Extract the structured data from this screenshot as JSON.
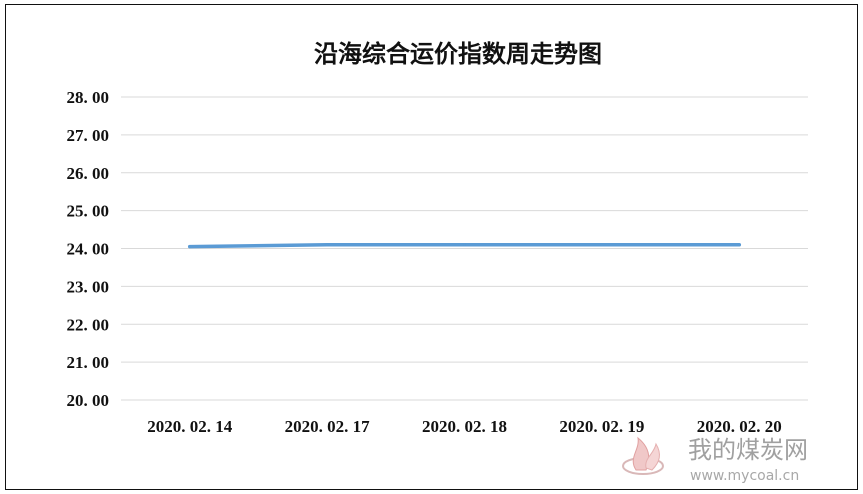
{
  "chart_data": {
    "type": "line",
    "title": "沿海综合运价指数周走势图",
    "categories": [
      "2020.02.14",
      "2020.02.17",
      "2020.02.18",
      "2020.02.19",
      "2020.02.20"
    ],
    "x_tick_labels": [
      "2020. 02. 14",
      "2020. 02. 17",
      "2020. 02. 18",
      "2020. 02. 19",
      "2020. 02. 20"
    ],
    "series": [
      {
        "values": [
          24.05,
          24.1,
          24.1,
          24.1,
          24.1
        ],
        "color": "#5b9bd5"
      }
    ],
    "ylim": [
      20,
      28
    ],
    "y_ticks": [
      20,
      21,
      22,
      23,
      24,
      25,
      26,
      27,
      28
    ],
    "y_tick_labels": [
      "20. 00",
      "21. 00",
      "22. 00",
      "23. 00",
      "24. 00",
      "25. 00",
      "26. 00",
      "27. 00",
      "28. 00"
    ],
    "xlabel": "",
    "ylabel": "",
    "grid": true,
    "legend": "none"
  },
  "watermark": {
    "text": "我的煤炭网",
    "url": "www.mycoal.cn",
    "icon": "flame-logo-icon"
  }
}
